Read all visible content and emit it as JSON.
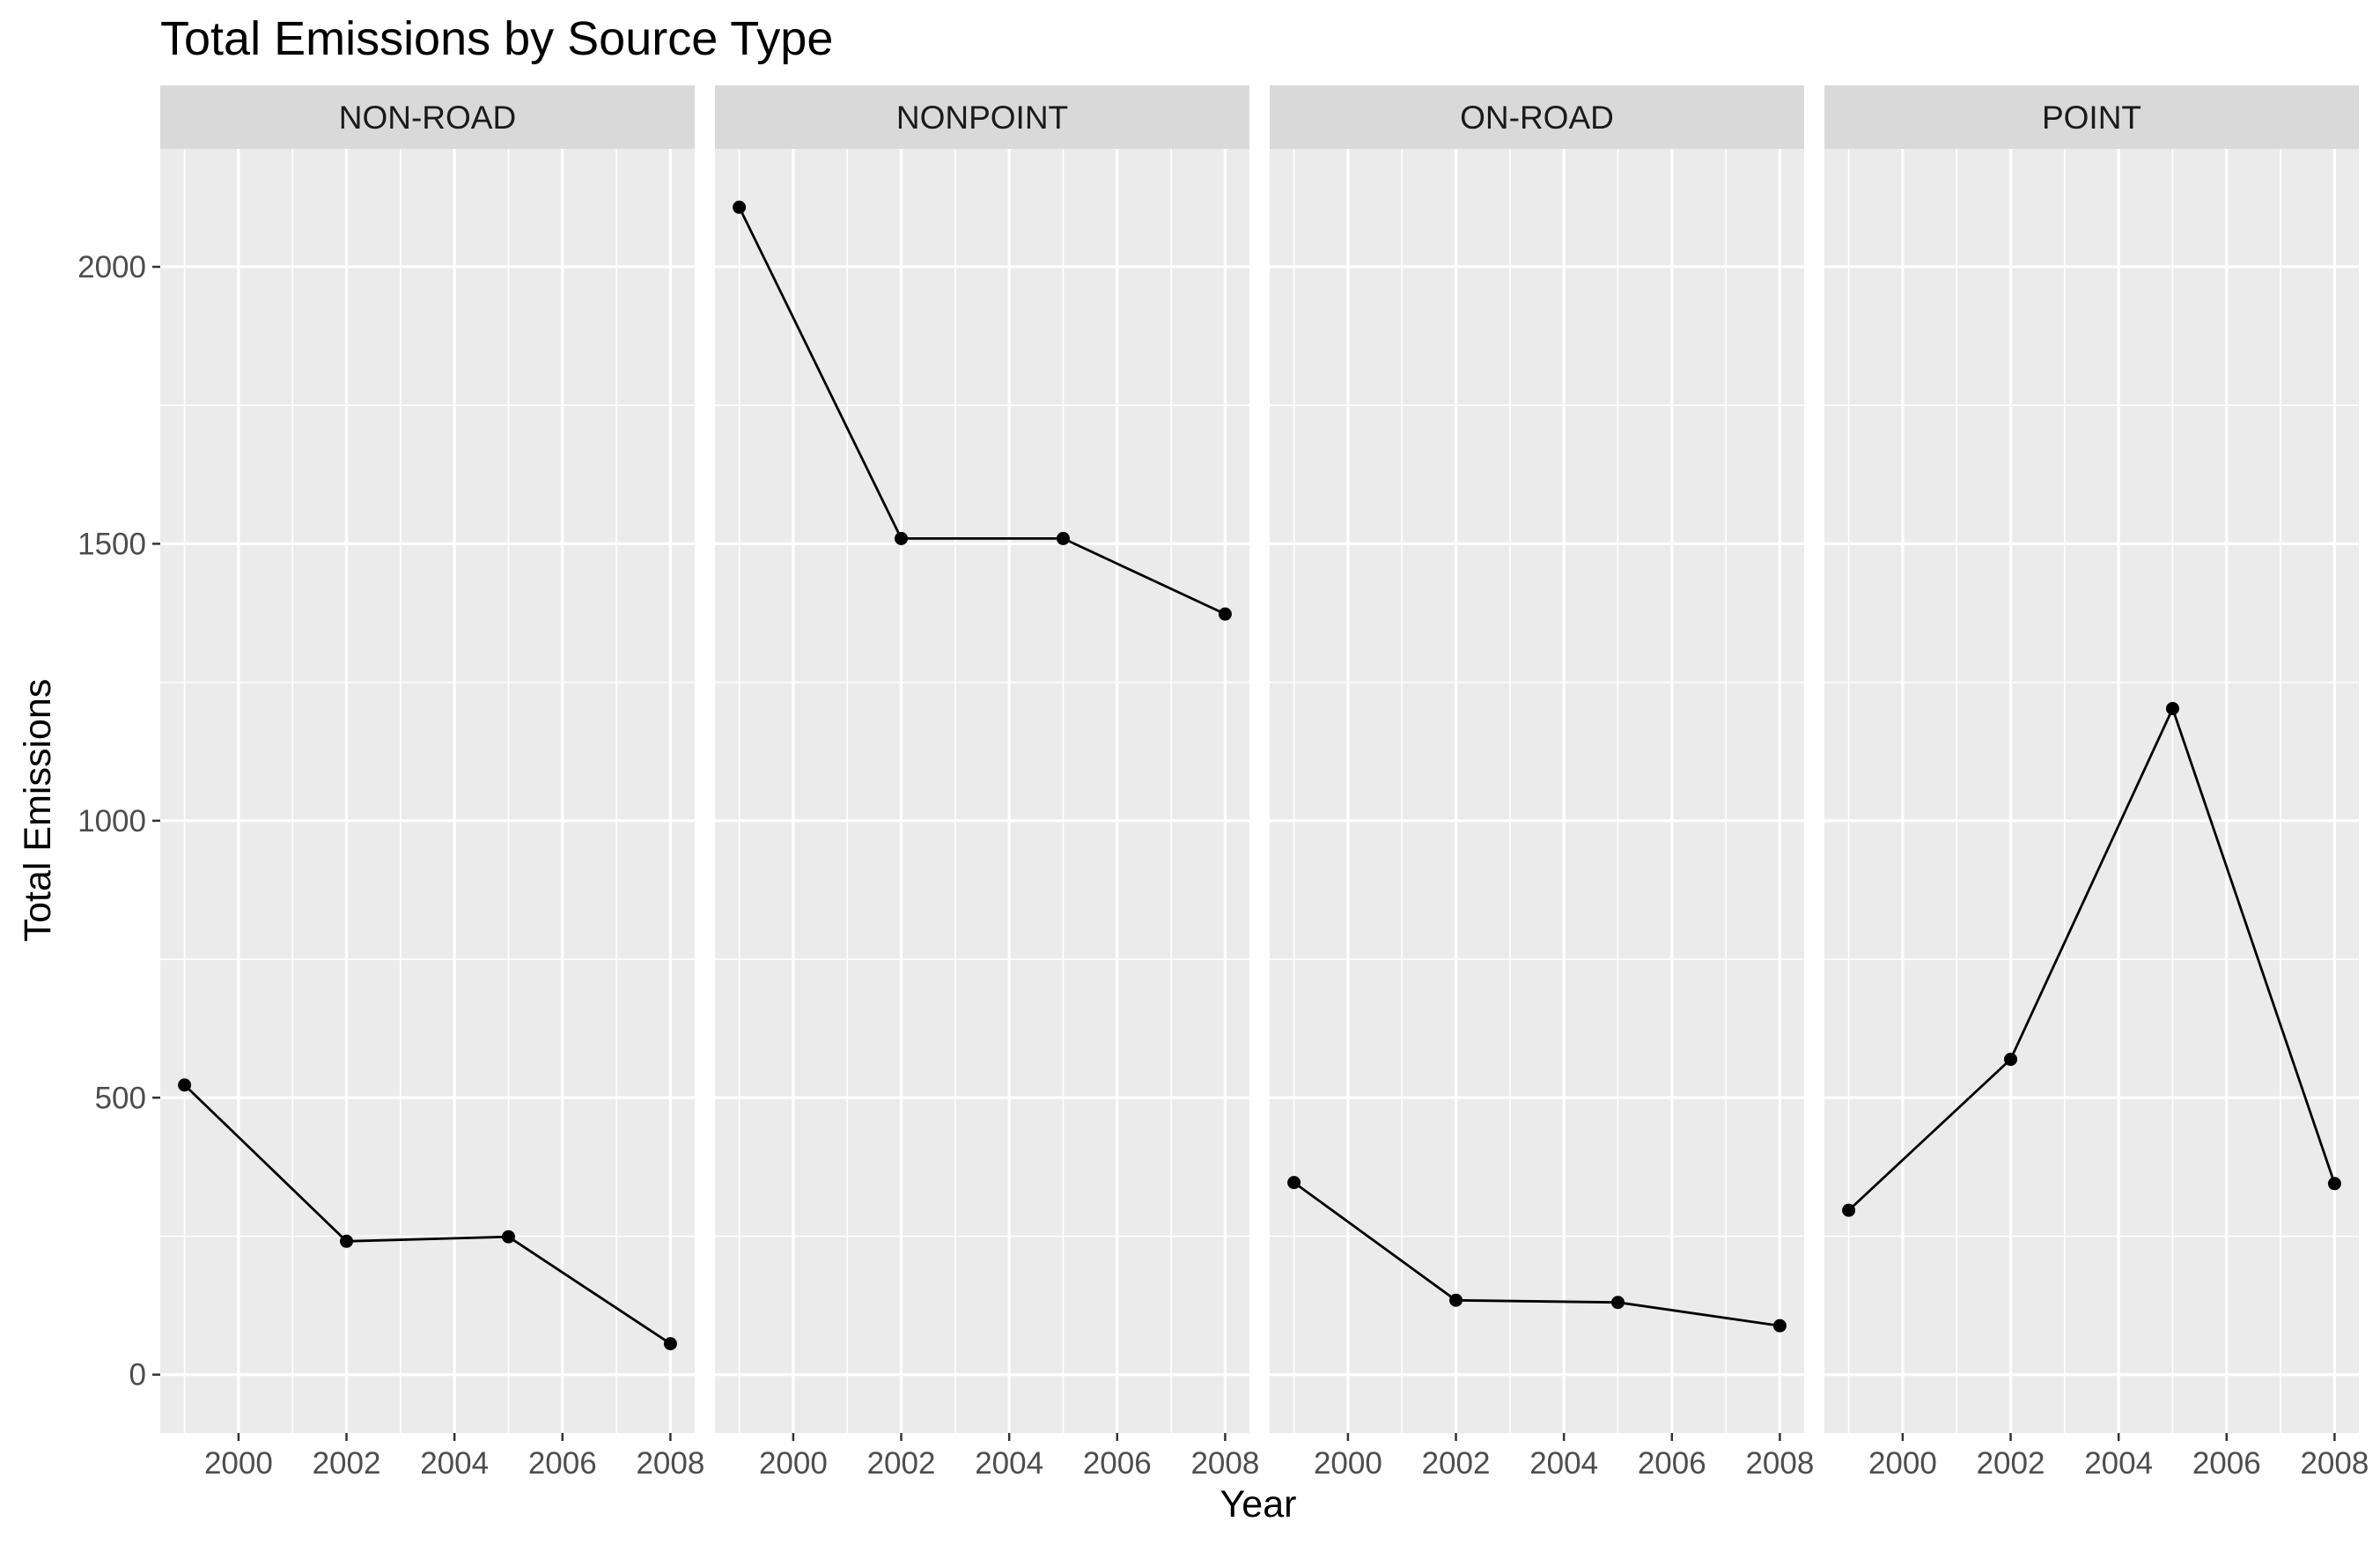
{
  "chart_data": {
    "type": "line",
    "title": "Total Emissions by Source Type",
    "xlabel": "Year",
    "ylabel": "Total Emissions",
    "facet_by": "type",
    "panels": [
      {
        "name": "NON-ROAD",
        "x": [
          1999,
          2002,
          2005,
          2008
        ],
        "values": [
          522.9,
          240.8,
          248.9,
          55.8
        ]
      },
      {
        "name": "NONPOINT",
        "x": [
          1999,
          2002,
          2005,
          2008
        ],
        "values": [
          2107.6,
          1509.5,
          1509.5,
          1373.2
        ]
      },
      {
        "name": "ON-ROAD",
        "x": [
          1999,
          2002,
          2005,
          2008
        ],
        "values": [
          346.8,
          134.3,
          130.4,
          88.3
        ]
      },
      {
        "name": "POINT",
        "x": [
          1999,
          2002,
          2005,
          2008
        ],
        "values": [
          296.8,
          569.3,
          1202.5,
          344.98
        ]
      }
    ],
    "x_ticks": [
      "2000",
      "2002",
      "2004",
      "2006",
      "2008"
    ],
    "y_ticks": [
      "0",
      "500",
      "1000",
      "1500",
      "2000"
    ],
    "xlim": [
      1998.55,
      2008.45
    ],
    "ylim": [
      -105.4,
      2213.0
    ],
    "grid": true,
    "legend": "none",
    "colors": {
      "panel_background": "#ebebeb",
      "strip_background": "#d9d9d9",
      "grid_major": "#ffffff",
      "series": "#000000"
    }
  }
}
